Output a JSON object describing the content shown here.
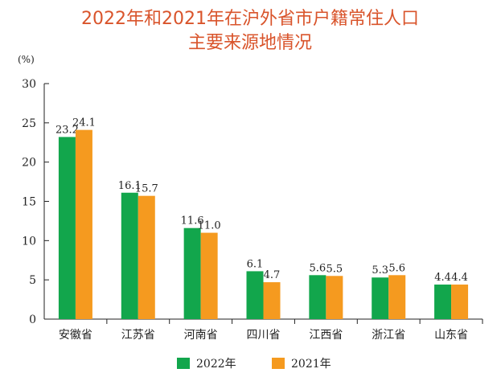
{
  "chart_data": {
    "type": "bar",
    "title_lines": [
      "2022年和2021年在沪外省市户籍常住人口",
      "主要来源地情况"
    ],
    "unit_label": "(%)",
    "ylim": [
      0,
      30
    ],
    "yticks": [
      "0",
      "5",
      "10",
      "15",
      "20",
      "25",
      "30"
    ],
    "categories": [
      "安徽省",
      "江苏省",
      "河南省",
      "四川省",
      "江西省",
      "浙江省",
      "山东省"
    ],
    "series": [
      {
        "name": "2022年",
        "color": "#12a64c",
        "values": [
          23.2,
          16.1,
          11.6,
          6.1,
          5.6,
          5.3,
          4.4
        ],
        "labels": [
          "23.2",
          "16.1",
          "11.6",
          "6.1",
          "5.6",
          "5.3",
          "4.4"
        ]
      },
      {
        "name": "2021年",
        "color": "#f59a1f",
        "values": [
          24.1,
          15.7,
          11.0,
          4.7,
          5.5,
          5.6,
          4.4
        ],
        "labels": [
          "24.1",
          "15.7",
          "11.0",
          "4.7",
          "5.5",
          "5.6",
          "4.4"
        ]
      }
    ],
    "grid": false,
    "legend_position": "bottom"
  }
}
